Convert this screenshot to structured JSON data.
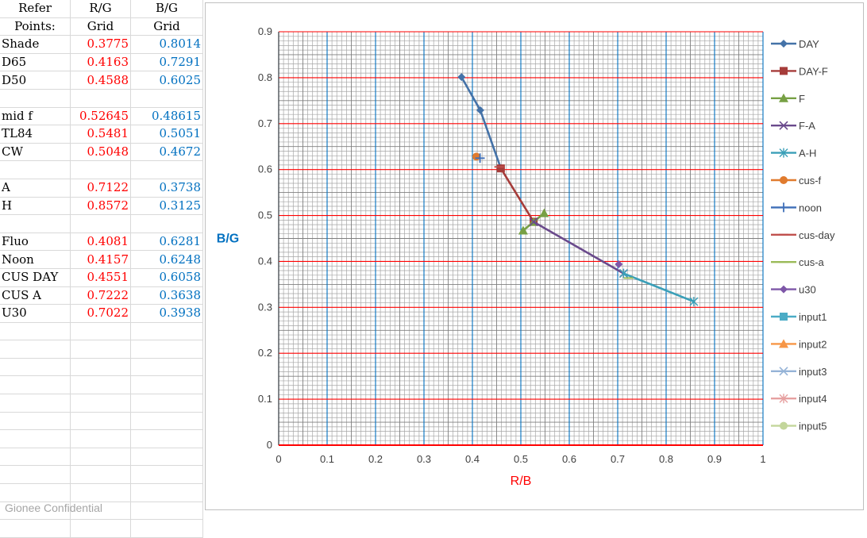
{
  "table": {
    "header_rows": [
      [
        "Refer",
        "R/G",
        "B/G"
      ],
      [
        "Points:",
        "Grid",
        "Grid"
      ]
    ],
    "rows": [
      [
        "Shade",
        "0.3775",
        "0.8014"
      ],
      [
        "D65",
        "0.4163",
        "0.7291"
      ],
      [
        "D50",
        "0.4588",
        "0.6025"
      ],
      [
        "",
        "",
        ""
      ],
      [
        "mid f",
        "0.52645",
        "0.48615"
      ],
      [
        "TL84",
        "0.5481",
        "0.5051"
      ],
      [
        "CW",
        "0.5048",
        "0.4672"
      ],
      [
        "",
        "",
        ""
      ],
      [
        "A",
        "0.7122",
        "0.3738"
      ],
      [
        "H",
        "0.8572",
        "0.3125"
      ],
      [
        "",
        "",
        ""
      ],
      [
        "Fluo",
        "0.4081",
        "0.6281"
      ],
      [
        "Noon",
        "0.4157",
        "0.6248"
      ],
      [
        "CUS DAY",
        "0.4551",
        "0.6058"
      ],
      [
        "CUS A",
        "0.7222",
        "0.3638"
      ],
      [
        "U30",
        "0.7022",
        "0.3938"
      ],
      [
        "",
        "",
        ""
      ],
      [
        "",
        "",
        ""
      ],
      [
        "",
        "",
        ""
      ],
      [
        "",
        "",
        ""
      ],
      [
        "",
        "",
        ""
      ],
      [
        "",
        "",
        ""
      ],
      [
        "",
        "",
        ""
      ],
      [
        "",
        "",
        ""
      ],
      [
        "",
        "",
        ""
      ],
      [
        "",
        "",
        ""
      ],
      [
        "",
        "",
        ""
      ],
      [
        "",
        "",
        ""
      ]
    ]
  },
  "footer_text": "Gionee Confidential",
  "chart_data": {
    "type": "scatter",
    "title": "",
    "xlabel": "R/B",
    "ylabel": "B/G",
    "xlim": [
      0,
      1
    ],
    "ylim": [
      0,
      0.9
    ],
    "x_ticks": [
      "0",
      "0.1",
      "0.2",
      "0.3",
      "0.4",
      "0.5",
      "0.6",
      "0.7",
      "0.8",
      "0.9",
      "1"
    ],
    "y_ticks": [
      "0",
      "0.1",
      "0.2",
      "0.3",
      "0.4",
      "0.5",
      "0.6",
      "0.7",
      "0.8",
      "0.9"
    ],
    "grid": true,
    "legend_position": "right",
    "series": [
      {
        "name": "DAY",
        "color": "#4472a8",
        "marker": "diamond",
        "points": [
          [
            0.3775,
            0.8014
          ],
          [
            0.4163,
            0.7291
          ],
          [
            0.4588,
            0.6025
          ]
        ]
      },
      {
        "name": "DAY-F",
        "color": "#a63c3a",
        "marker": "square",
        "points": [
          [
            0.4588,
            0.6025
          ],
          [
            0.52645,
            0.48615
          ]
        ]
      },
      {
        "name": "F",
        "color": "#77a044",
        "marker": "triangle",
        "points": [
          [
            0.5481,
            0.5051
          ],
          [
            0.52645,
            0.48615
          ],
          [
            0.5048,
            0.4672
          ]
        ]
      },
      {
        "name": "F-A",
        "color": "#6a4a8c",
        "marker": "x",
        "points": [
          [
            0.52645,
            0.48615
          ],
          [
            0.7122,
            0.3738
          ]
        ]
      },
      {
        "name": "A-H",
        "color": "#3a9fb8",
        "marker": "star",
        "points": [
          [
            0.7122,
            0.3738
          ],
          [
            0.8572,
            0.3125
          ]
        ]
      },
      {
        "name": "cus-f",
        "color": "#e07b2e",
        "marker": "circle",
        "points": [
          [
            0.4081,
            0.6281
          ]
        ]
      },
      {
        "name": "noon",
        "color": "#3f6fb8",
        "marker": "plus",
        "points": [
          [
            0.4157,
            0.6248
          ]
        ]
      },
      {
        "name": "cus-day",
        "color": "#c0504d",
        "marker": "dash",
        "points": [
          [
            0.4551,
            0.6058
          ]
        ]
      },
      {
        "name": "cus-a",
        "color": "#9bbb59",
        "marker": "dash",
        "points": [
          [
            0.7222,
            0.3638
          ]
        ]
      },
      {
        "name": "u30",
        "color": "#7e57a8",
        "marker": "diamond",
        "points": [
          [
            0.7022,
            0.3938
          ]
        ]
      },
      {
        "name": "input1",
        "color": "#4bacc6",
        "marker": "square",
        "points": []
      },
      {
        "name": "input2",
        "color": "#f79646",
        "marker": "triangle",
        "points": []
      },
      {
        "name": "input3",
        "color": "#95b3d7",
        "marker": "x",
        "points": []
      },
      {
        "name": "input4",
        "color": "#e6a0a0",
        "marker": "star",
        "points": []
      },
      {
        "name": "input5",
        "color": "#c3d69b",
        "marker": "circle",
        "points": []
      }
    ],
    "colors": {
      "major_grid_y": "#ff0000",
      "major_grid_x": "#0070c0",
      "minor_grid": "#a6a6a6",
      "ylabel_color": "#0070c0",
      "xlabel_color": "#ff0000"
    }
  }
}
